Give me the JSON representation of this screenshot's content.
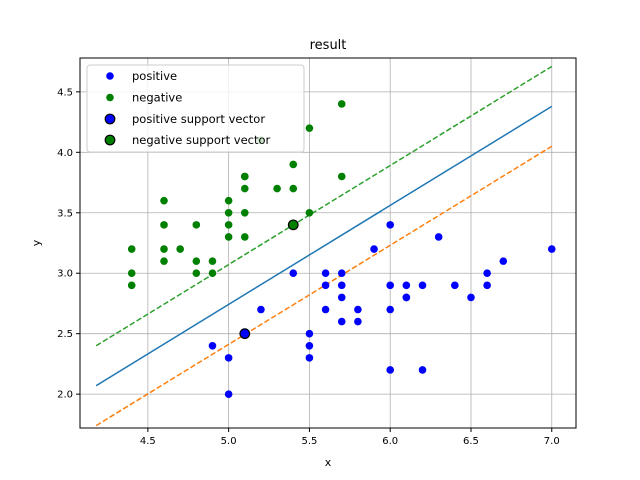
{
  "chart_data": {
    "type": "scatter",
    "title": "result",
    "xlabel": "x",
    "ylabel": "y",
    "xlim": [
      4.08,
      7.15
    ],
    "ylim": [
      1.72,
      4.78
    ],
    "xticks": [
      4.5,
      5.0,
      5.5,
      6.0,
      6.5,
      7.0
    ],
    "xtick_labels": [
      "4.5",
      "5.0",
      "5.5",
      "6.0",
      "6.5",
      "7.0"
    ],
    "yticks": [
      2.0,
      2.5,
      3.0,
      3.5,
      4.0,
      4.5
    ],
    "ytick_labels": [
      "2.0",
      "2.5",
      "3.0",
      "3.5",
      "4.0",
      "4.5"
    ],
    "grid": true,
    "legend_position": "top-left",
    "series": [
      {
        "name": "positive",
        "color": "#0000ff",
        "points": [
          [
            4.9,
            2.4
          ],
          [
            5.0,
            2.3
          ],
          [
            5.0,
            2.0
          ],
          [
            5.1,
            2.5
          ],
          [
            5.2,
            2.7
          ],
          [
            5.4,
            3.0
          ],
          [
            5.5,
            2.5
          ],
          [
            5.5,
            2.4
          ],
          [
            5.5,
            2.3
          ],
          [
            5.6,
            3.0
          ],
          [
            5.6,
            2.9
          ],
          [
            5.6,
            2.7
          ],
          [
            5.7,
            3.0
          ],
          [
            5.7,
            2.9
          ],
          [
            5.7,
            2.8
          ],
          [
            5.7,
            2.6
          ],
          [
            5.8,
            2.7
          ],
          [
            5.8,
            2.6
          ],
          [
            5.9,
            3.2
          ],
          [
            6.0,
            3.4
          ],
          [
            6.0,
            2.9
          ],
          [
            6.0,
            2.7
          ],
          [
            6.0,
            2.2
          ],
          [
            6.1,
            2.9
          ],
          [
            6.1,
            2.8
          ],
          [
            6.1,
            2.8
          ],
          [
            6.2,
            2.9
          ],
          [
            6.2,
            2.2
          ],
          [
            6.3,
            3.3
          ],
          [
            6.4,
            2.9
          ],
          [
            6.5,
            2.8
          ],
          [
            6.6,
            3.0
          ],
          [
            6.6,
            2.9
          ],
          [
            6.7,
            3.1
          ],
          [
            7.0,
            3.2
          ]
        ]
      },
      {
        "name": "negative",
        "color": "#008000",
        "points": [
          [
            4.4,
            3.2
          ],
          [
            4.4,
            3.0
          ],
          [
            4.4,
            2.9
          ],
          [
            4.6,
            3.6
          ],
          [
            4.6,
            3.4
          ],
          [
            4.6,
            3.2
          ],
          [
            4.6,
            3.1
          ],
          [
            4.7,
            3.2
          ],
          [
            4.8,
            3.4
          ],
          [
            4.8,
            3.1
          ],
          [
            4.8,
            3.0
          ],
          [
            4.9,
            3.1
          ],
          [
            4.9,
            3.0
          ],
          [
            5.0,
            3.6
          ],
          [
            5.0,
            3.5
          ],
          [
            5.0,
            3.4
          ],
          [
            5.0,
            3.3
          ],
          [
            5.1,
            3.8
          ],
          [
            5.1,
            3.8
          ],
          [
            5.1,
            3.7
          ],
          [
            5.1,
            3.5
          ],
          [
            5.1,
            3.3
          ],
          [
            5.2,
            4.1
          ],
          [
            5.3,
            3.7
          ],
          [
            5.4,
            3.9
          ],
          [
            5.4,
            3.7
          ],
          [
            5.4,
            3.4
          ],
          [
            5.5,
            4.2
          ],
          [
            5.5,
            3.5
          ],
          [
            5.7,
            4.4
          ],
          [
            5.7,
            3.8
          ]
        ]
      },
      {
        "name": "positive support vector",
        "color": "#0000ff",
        "edge": "#000000",
        "points": [
          [
            5.1,
            2.5
          ]
        ]
      },
      {
        "name": "negative support vector",
        "color": "#008000",
        "edge": "#000000",
        "points": [
          [
            5.4,
            3.4
          ]
        ]
      }
    ],
    "lines": [
      {
        "color": "#1f77b4",
        "style": "solid",
        "x": [
          4.18,
          7.0
        ],
        "y": [
          2.07,
          4.38
        ]
      },
      {
        "color": "#2ca02c",
        "style": "dashed",
        "x": [
          4.18,
          7.0
        ],
        "y": [
          2.4,
          4.71
        ]
      },
      {
        "color": "#ff7f0e",
        "style": "dashed",
        "x": [
          4.18,
          7.0
        ],
        "y": [
          1.74,
          4.05
        ]
      }
    ]
  }
}
